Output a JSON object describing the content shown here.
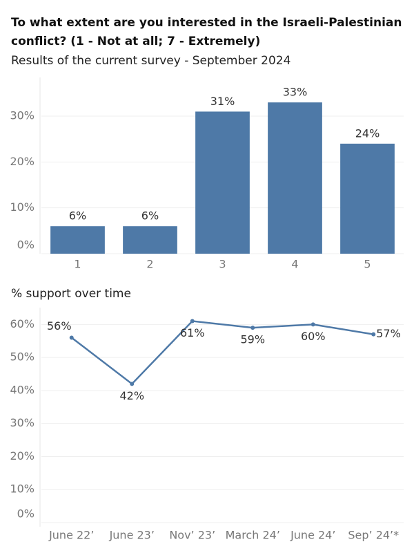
{
  "chart_data": [
    {
      "type": "bar",
      "title": "To what extent are you interested in the Israeli-Palestinian conflict? (1 - Not at all; 7 - Extremely)",
      "subtitle": "Results of the current survey - September 2024",
      "categories": [
        "1",
        "2",
        "3",
        "4",
        "5"
      ],
      "values": [
        6,
        6,
        31,
        33,
        24
      ],
      "value_labels": [
        "6%",
        "6%",
        "31%",
        "33%",
        "24%"
      ],
      "color": "#4e79a7",
      "ylim": [
        0,
        38
      ],
      "yticks": [
        {
          "value": 0,
          "label": "0%"
        },
        {
          "value": 10,
          "label": "10%"
        },
        {
          "value": 20,
          "label": "20%"
        },
        {
          "value": 30,
          "label": "30%"
        }
      ],
      "grid": true
    },
    {
      "type": "line",
      "title": "% support over time",
      "categories": [
        "June 22’",
        "June 23’",
        "Nov’ 23’",
        "March 24’",
        "June 24’",
        "Sep’ 24’*"
      ],
      "values": [
        56,
        42,
        61,
        59,
        60,
        57
      ],
      "value_labels": [
        "56%",
        "42%",
        "61%",
        "59%",
        "60%",
        "57%"
      ],
      "color": "#4e79a7",
      "ylim": [
        0,
        63
      ],
      "yticks": [
        {
          "value": 0,
          "label": "0%"
        },
        {
          "value": 10,
          "label": "10%"
        },
        {
          "value": 20,
          "label": "20%"
        },
        {
          "value": 30,
          "label": "30%"
        },
        {
          "value": 40,
          "label": "40%"
        },
        {
          "value": 50,
          "label": "50%"
        },
        {
          "value": 60,
          "label": "60%"
        }
      ],
      "grid": true
    }
  ]
}
